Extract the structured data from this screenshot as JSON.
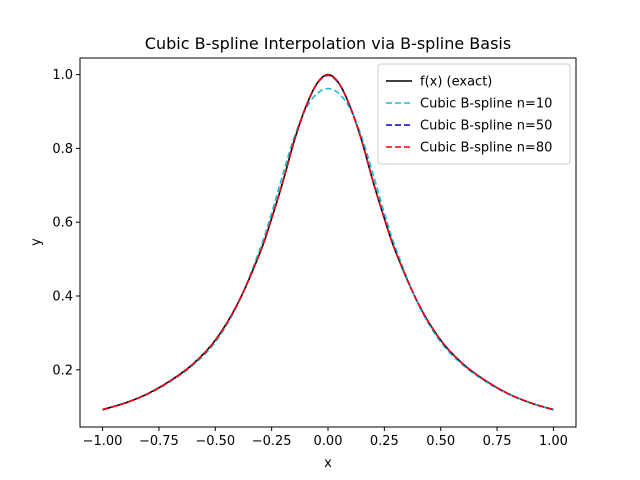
{
  "chart_data": {
    "type": "line",
    "title": "Cubic B-spline Interpolation via B-spline Basis",
    "xlabel": "x",
    "ylabel": "y",
    "xlim": [
      -1.1,
      1.1
    ],
    "ylim": [
      0.045,
      1.045
    ],
    "xticks": [
      -1.0,
      -0.75,
      -0.5,
      -0.25,
      0.0,
      0.25,
      0.5,
      0.75,
      1.0
    ],
    "xtick_labels": [
      "−1.00",
      "−0.75",
      "−0.50",
      "−0.25",
      "0.00",
      "0.25",
      "0.50",
      "0.75",
      "1.00"
    ],
    "yticks": [
      0.2,
      0.4,
      0.6,
      0.8,
      1.0
    ],
    "ytick_labels": [
      "0.2",
      "0.4",
      "0.6",
      "0.8",
      "1.0"
    ],
    "grid": false,
    "legend_position": "upper-right",
    "series": [
      {
        "name": "f(x) (exact)",
        "color": "#000000",
        "style": "solid",
        "x": [
          -1.0,
          -0.9,
          -0.8,
          -0.7,
          -0.6,
          -0.5,
          -0.4,
          -0.3,
          -0.25,
          -0.2,
          -0.15,
          -0.1,
          -0.05,
          0.0,
          0.05,
          0.1,
          0.15,
          0.2,
          0.25,
          0.3,
          0.4,
          0.5,
          0.6,
          0.7,
          0.8,
          0.9,
          1.0
        ],
        "y": [
          0.092,
          0.11,
          0.135,
          0.17,
          0.215,
          0.28,
          0.38,
          0.52,
          0.61,
          0.71,
          0.82,
          0.91,
          0.975,
          1.0,
          0.975,
          0.91,
          0.82,
          0.71,
          0.61,
          0.52,
          0.38,
          0.28,
          0.215,
          0.17,
          0.135,
          0.11,
          0.092
        ]
      },
      {
        "name": "Cubic B-spline n=10",
        "color": "#17becf",
        "style": "dashed",
        "x": [
          -1.0,
          -0.9,
          -0.8,
          -0.7,
          -0.6,
          -0.5,
          -0.4,
          -0.3,
          -0.25,
          -0.2,
          -0.15,
          -0.1,
          -0.05,
          0.0,
          0.05,
          0.1,
          0.15,
          0.2,
          0.25,
          0.3,
          0.4,
          0.5,
          0.6,
          0.7,
          0.8,
          0.9,
          1.0
        ],
        "y": [
          0.092,
          0.11,
          0.134,
          0.168,
          0.212,
          0.275,
          0.378,
          0.53,
          0.625,
          0.73,
          0.83,
          0.905,
          0.948,
          0.962,
          0.948,
          0.905,
          0.83,
          0.73,
          0.625,
          0.53,
          0.378,
          0.275,
          0.212,
          0.168,
          0.134,
          0.11,
          0.092
        ]
      },
      {
        "name": "Cubic B-spline n=50",
        "color": "#0000cd",
        "style": "dashed",
        "x": [
          -1.0,
          -0.9,
          -0.8,
          -0.7,
          -0.6,
          -0.5,
          -0.4,
          -0.3,
          -0.25,
          -0.2,
          -0.15,
          -0.1,
          -0.05,
          0.0,
          0.05,
          0.1,
          0.15,
          0.2,
          0.25,
          0.3,
          0.4,
          0.5,
          0.6,
          0.7,
          0.8,
          0.9,
          1.0
        ],
        "y": [
          0.092,
          0.11,
          0.135,
          0.17,
          0.215,
          0.28,
          0.38,
          0.52,
          0.61,
          0.71,
          0.82,
          0.91,
          0.974,
          0.998,
          0.974,
          0.91,
          0.82,
          0.71,
          0.61,
          0.52,
          0.38,
          0.28,
          0.215,
          0.17,
          0.135,
          0.11,
          0.092
        ]
      },
      {
        "name": "Cubic B-spline n=80",
        "color": "#ff0000",
        "style": "dashed",
        "x": [
          -1.0,
          -0.9,
          -0.8,
          -0.7,
          -0.6,
          -0.5,
          -0.4,
          -0.3,
          -0.25,
          -0.2,
          -0.15,
          -0.1,
          -0.05,
          0.0,
          0.05,
          0.1,
          0.15,
          0.2,
          0.25,
          0.3,
          0.4,
          0.5,
          0.6,
          0.7,
          0.8,
          0.9,
          1.0
        ],
        "y": [
          0.092,
          0.11,
          0.135,
          0.17,
          0.215,
          0.28,
          0.38,
          0.52,
          0.61,
          0.71,
          0.82,
          0.91,
          0.975,
          0.999,
          0.975,
          0.91,
          0.82,
          0.71,
          0.61,
          0.52,
          0.38,
          0.28,
          0.215,
          0.17,
          0.135,
          0.11,
          0.092
        ]
      }
    ]
  }
}
